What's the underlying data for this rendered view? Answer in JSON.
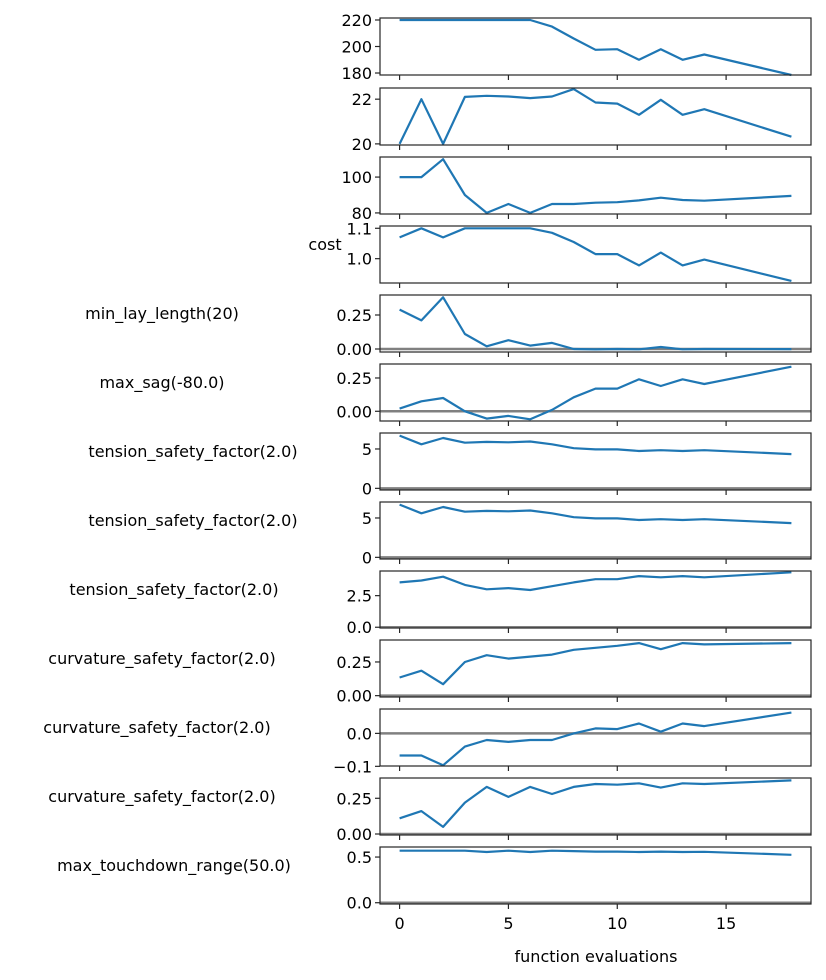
{
  "chart_data": [
    {
      "type": "line",
      "ylabel": "",
      "ylim": [
        178.5,
        221.5
      ],
      "yticks": [
        180,
        200,
        220
      ],
      "ytick_labels": [
        "180",
        "200",
        "220"
      ],
      "zero_line": false,
      "x": [
        0,
        1,
        2,
        3,
        4,
        5,
        6,
        7,
        8,
        9,
        10,
        11,
        12,
        13,
        14,
        18
      ],
      "values": [
        220,
        220,
        220,
        220,
        220,
        220,
        220,
        215,
        206,
        197.5,
        198,
        190,
        198,
        190,
        194,
        178.5
      ]
    },
    {
      "type": "line",
      "ylabel": "",
      "ylim": [
        19.95,
        22.5
      ],
      "yticks": [
        20,
        22
      ],
      "ytick_labels": [
        "20",
        "22"
      ],
      "zero_line": false,
      "x": [
        0,
        1,
        2,
        3,
        4,
        5,
        6,
        7,
        8,
        9,
        10,
        11,
        12,
        13,
        14,
        18
      ],
      "values": [
        20,
        22,
        20,
        22.1,
        22.15,
        22.12,
        22.05,
        22.12,
        22.45,
        21.85,
        21.8,
        21.3,
        21.97,
        21.3,
        21.55,
        20.32
      ]
    },
    {
      "type": "line",
      "ylabel": "",
      "ylim": [
        79.4,
        111.2
      ],
      "yticks": [
        80,
        100
      ],
      "ytick_labels": [
        "80",
        "100"
      ],
      "zero_line": false,
      "x": [
        0,
        1,
        2,
        3,
        4,
        5,
        6,
        7,
        8,
        9,
        10,
        11,
        12,
        13,
        14,
        18
      ],
      "values": [
        100,
        100,
        110,
        90,
        80,
        85,
        80,
        85,
        85,
        85.7,
        86,
        87,
        88.5,
        87.2,
        86.8,
        89.5
      ]
    },
    {
      "type": "line",
      "ylabel": "cost",
      "ylim": [
        0.92,
        1.1075
      ],
      "yticks": [
        1.0,
        1.1
      ],
      "ytick_labels": [
        "1.0",
        "1.1"
      ],
      "zero_line": false,
      "x": [
        0,
        1,
        2,
        3,
        4,
        5,
        6,
        7,
        8,
        9,
        10,
        11,
        12,
        13,
        14,
        18
      ],
      "values": [
        1.07,
        1.1,
        1.07,
        1.1,
        1.1,
        1.1,
        1.1,
        1.085,
        1.055,
        1.015,
        1.015,
        0.978,
        1.02,
        0.978,
        0.997,
        0.927
      ]
    },
    {
      "type": "line",
      "ylabel": "min_lay_length(20)",
      "ylim": [
        -0.022,
        0.397
      ],
      "yticks": [
        0,
        0.25
      ],
      "ytick_labels": [
        "0.00",
        "0.25"
      ],
      "zero_line": true,
      "x": [
        0,
        1,
        2,
        3,
        4,
        5,
        6,
        7,
        8,
        9,
        10,
        11,
        12,
        13,
        14,
        18
      ],
      "values": [
        0.29,
        0.21,
        0.38,
        0.11,
        0.02,
        0.065,
        0.025,
        0.045,
        0,
        -0.003,
        0,
        -0.002,
        0.015,
        -0.002,
        0,
        -0.001
      ]
    },
    {
      "type": "line",
      "ylabel": "max_sag(-80.0)",
      "ylim": [
        -0.073,
        0.355
      ],
      "yticks": [
        0,
        0.25
      ],
      "ytick_labels": [
        "0.00",
        "0.25"
      ],
      "zero_line": true,
      "x": [
        0,
        1,
        2,
        3,
        4,
        5,
        6,
        7,
        8,
        9,
        10,
        11,
        12,
        13,
        14,
        18
      ],
      "values": [
        0.02,
        0.075,
        0.1,
        0,
        -0.055,
        -0.035,
        -0.06,
        0.01,
        0.105,
        0.17,
        0.17,
        0.24,
        0.19,
        0.24,
        0.205,
        0.335
      ]
    },
    {
      "type": "line",
      "ylabel": "tension_safety_factor(2.0)",
      "ylim": [
        -0.21,
        7.03
      ],
      "yticks": [
        0,
        5
      ],
      "ytick_labels": [
        "0",
        "5"
      ],
      "zero_line": true,
      "x": [
        0,
        1,
        2,
        3,
        4,
        5,
        6,
        7,
        8,
        9,
        10,
        11,
        12,
        13,
        14,
        18
      ],
      "values": [
        6.7,
        5.6,
        6.4,
        5.8,
        5.9,
        5.85,
        5.95,
        5.6,
        5.1,
        4.95,
        4.95,
        4.75,
        4.85,
        4.75,
        4.85,
        4.35
      ]
    },
    {
      "type": "line",
      "ylabel": "tension_safety_factor(2.0)",
      "ylim": [
        -0.21,
        7.03
      ],
      "yticks": [
        0,
        5
      ],
      "ytick_labels": [
        "0",
        "5"
      ],
      "zero_line": true,
      "x": [
        0,
        1,
        2,
        3,
        4,
        5,
        6,
        7,
        8,
        9,
        10,
        11,
        12,
        13,
        14,
        18
      ],
      "values": [
        6.7,
        5.6,
        6.4,
        5.8,
        5.9,
        5.85,
        5.95,
        5.6,
        5.1,
        4.95,
        4.95,
        4.75,
        4.85,
        4.75,
        4.85,
        4.35
      ]
    },
    {
      "type": "line",
      "ylabel": "tension_safety_factor(2.0)",
      "ylim": [
        -0.06,
        4.45
      ],
      "yticks": [
        0,
        2.5
      ],
      "ytick_labels": [
        "0.0",
        "2.5"
      ],
      "zero_line": true,
      "x": [
        0,
        1,
        2,
        3,
        4,
        5,
        6,
        7,
        8,
        9,
        10,
        11,
        12,
        13,
        14,
        18
      ],
      "values": [
        3.55,
        3.7,
        4.0,
        3.35,
        3.0,
        3.1,
        2.95,
        3.25,
        3.55,
        3.8,
        3.8,
        4.05,
        3.95,
        4.05,
        3.95,
        4.35
      ]
    },
    {
      "type": "line",
      "ylabel": "curvature_safety_factor(2.0)",
      "ylim": [
        -0.01,
        0.413
      ],
      "yticks": [
        0,
        0.25
      ],
      "ytick_labels": [
        "0.00",
        "0.25"
      ],
      "zero_line": true,
      "x": [
        0,
        1,
        2,
        3,
        4,
        5,
        6,
        7,
        8,
        9,
        10,
        11,
        12,
        13,
        14,
        18
      ],
      "values": [
        0.135,
        0.185,
        0.085,
        0.25,
        0.3,
        0.275,
        0.29,
        0.305,
        0.34,
        0.355,
        0.37,
        0.39,
        0.345,
        0.39,
        0.38,
        0.39
      ]
    },
    {
      "type": "line",
      "ylabel": "curvature_safety_factor(2.0)",
      "ylim": [
        -0.099,
        0.074
      ],
      "yticks": [
        -0.1,
        0
      ],
      "ytick_labels": [
        "−0.1",
        "0.0"
      ],
      "zero_line": true,
      "x": [
        0,
        1,
        2,
        3,
        4,
        5,
        6,
        7,
        8,
        9,
        10,
        11,
        12,
        13,
        14,
        18
      ],
      "values": [
        -0.067,
        -0.067,
        -0.097,
        -0.04,
        -0.02,
        -0.026,
        -0.02,
        -0.02,
        0,
        0.015,
        0.013,
        0.03,
        0.005,
        0.03,
        0.022,
        0.063
      ]
    },
    {
      "type": "line",
      "ylabel": "curvature_safety_factor(2.0)",
      "ylim": [
        -0.007,
        0.392
      ],
      "yticks": [
        0,
        0.25
      ],
      "ytick_labels": [
        "0.00",
        "0.25"
      ],
      "zero_line": true,
      "x": [
        0,
        1,
        2,
        3,
        4,
        5,
        6,
        7,
        8,
        9,
        10,
        11,
        12,
        13,
        14,
        18
      ],
      "values": [
        0.11,
        0.16,
        0.05,
        0.22,
        0.33,
        0.26,
        0.33,
        0.28,
        0.33,
        0.35,
        0.345,
        0.355,
        0.325,
        0.355,
        0.35,
        0.375
      ]
    },
    {
      "type": "line",
      "ylabel": "max_touchdown_range(50.0)",
      "ylim": [
        -0.014,
        0.61
      ],
      "yticks": [
        0,
        0.5
      ],
      "ytick_labels": [
        "0.0",
        "0.5"
      ],
      "zero_line": true,
      "x": [
        0,
        1,
        2,
        3,
        4,
        5,
        6,
        7,
        8,
        9,
        10,
        11,
        12,
        13,
        14,
        18
      ],
      "values": [
        0.57,
        0.57,
        0.57,
        0.57,
        0.555,
        0.57,
        0.555,
        0.57,
        0.565,
        0.56,
        0.56,
        0.555,
        0.56,
        0.555,
        0.558,
        0.525
      ],
      "xlabel": "function evaluations",
      "xticks": [
        0,
        5,
        10,
        15
      ],
      "xtick_labels": [
        "0",
        "5",
        "10",
        "15"
      ]
    }
  ],
  "xlim": [
    -0.9,
    18.9
  ],
  "xlabel": "function evaluations",
  "xtick_labels": [
    "0",
    "5",
    "10",
    "15"
  ],
  "colors": {
    "line": "#1f77b4",
    "zero_line": "#808080",
    "axes": "#262626"
  }
}
